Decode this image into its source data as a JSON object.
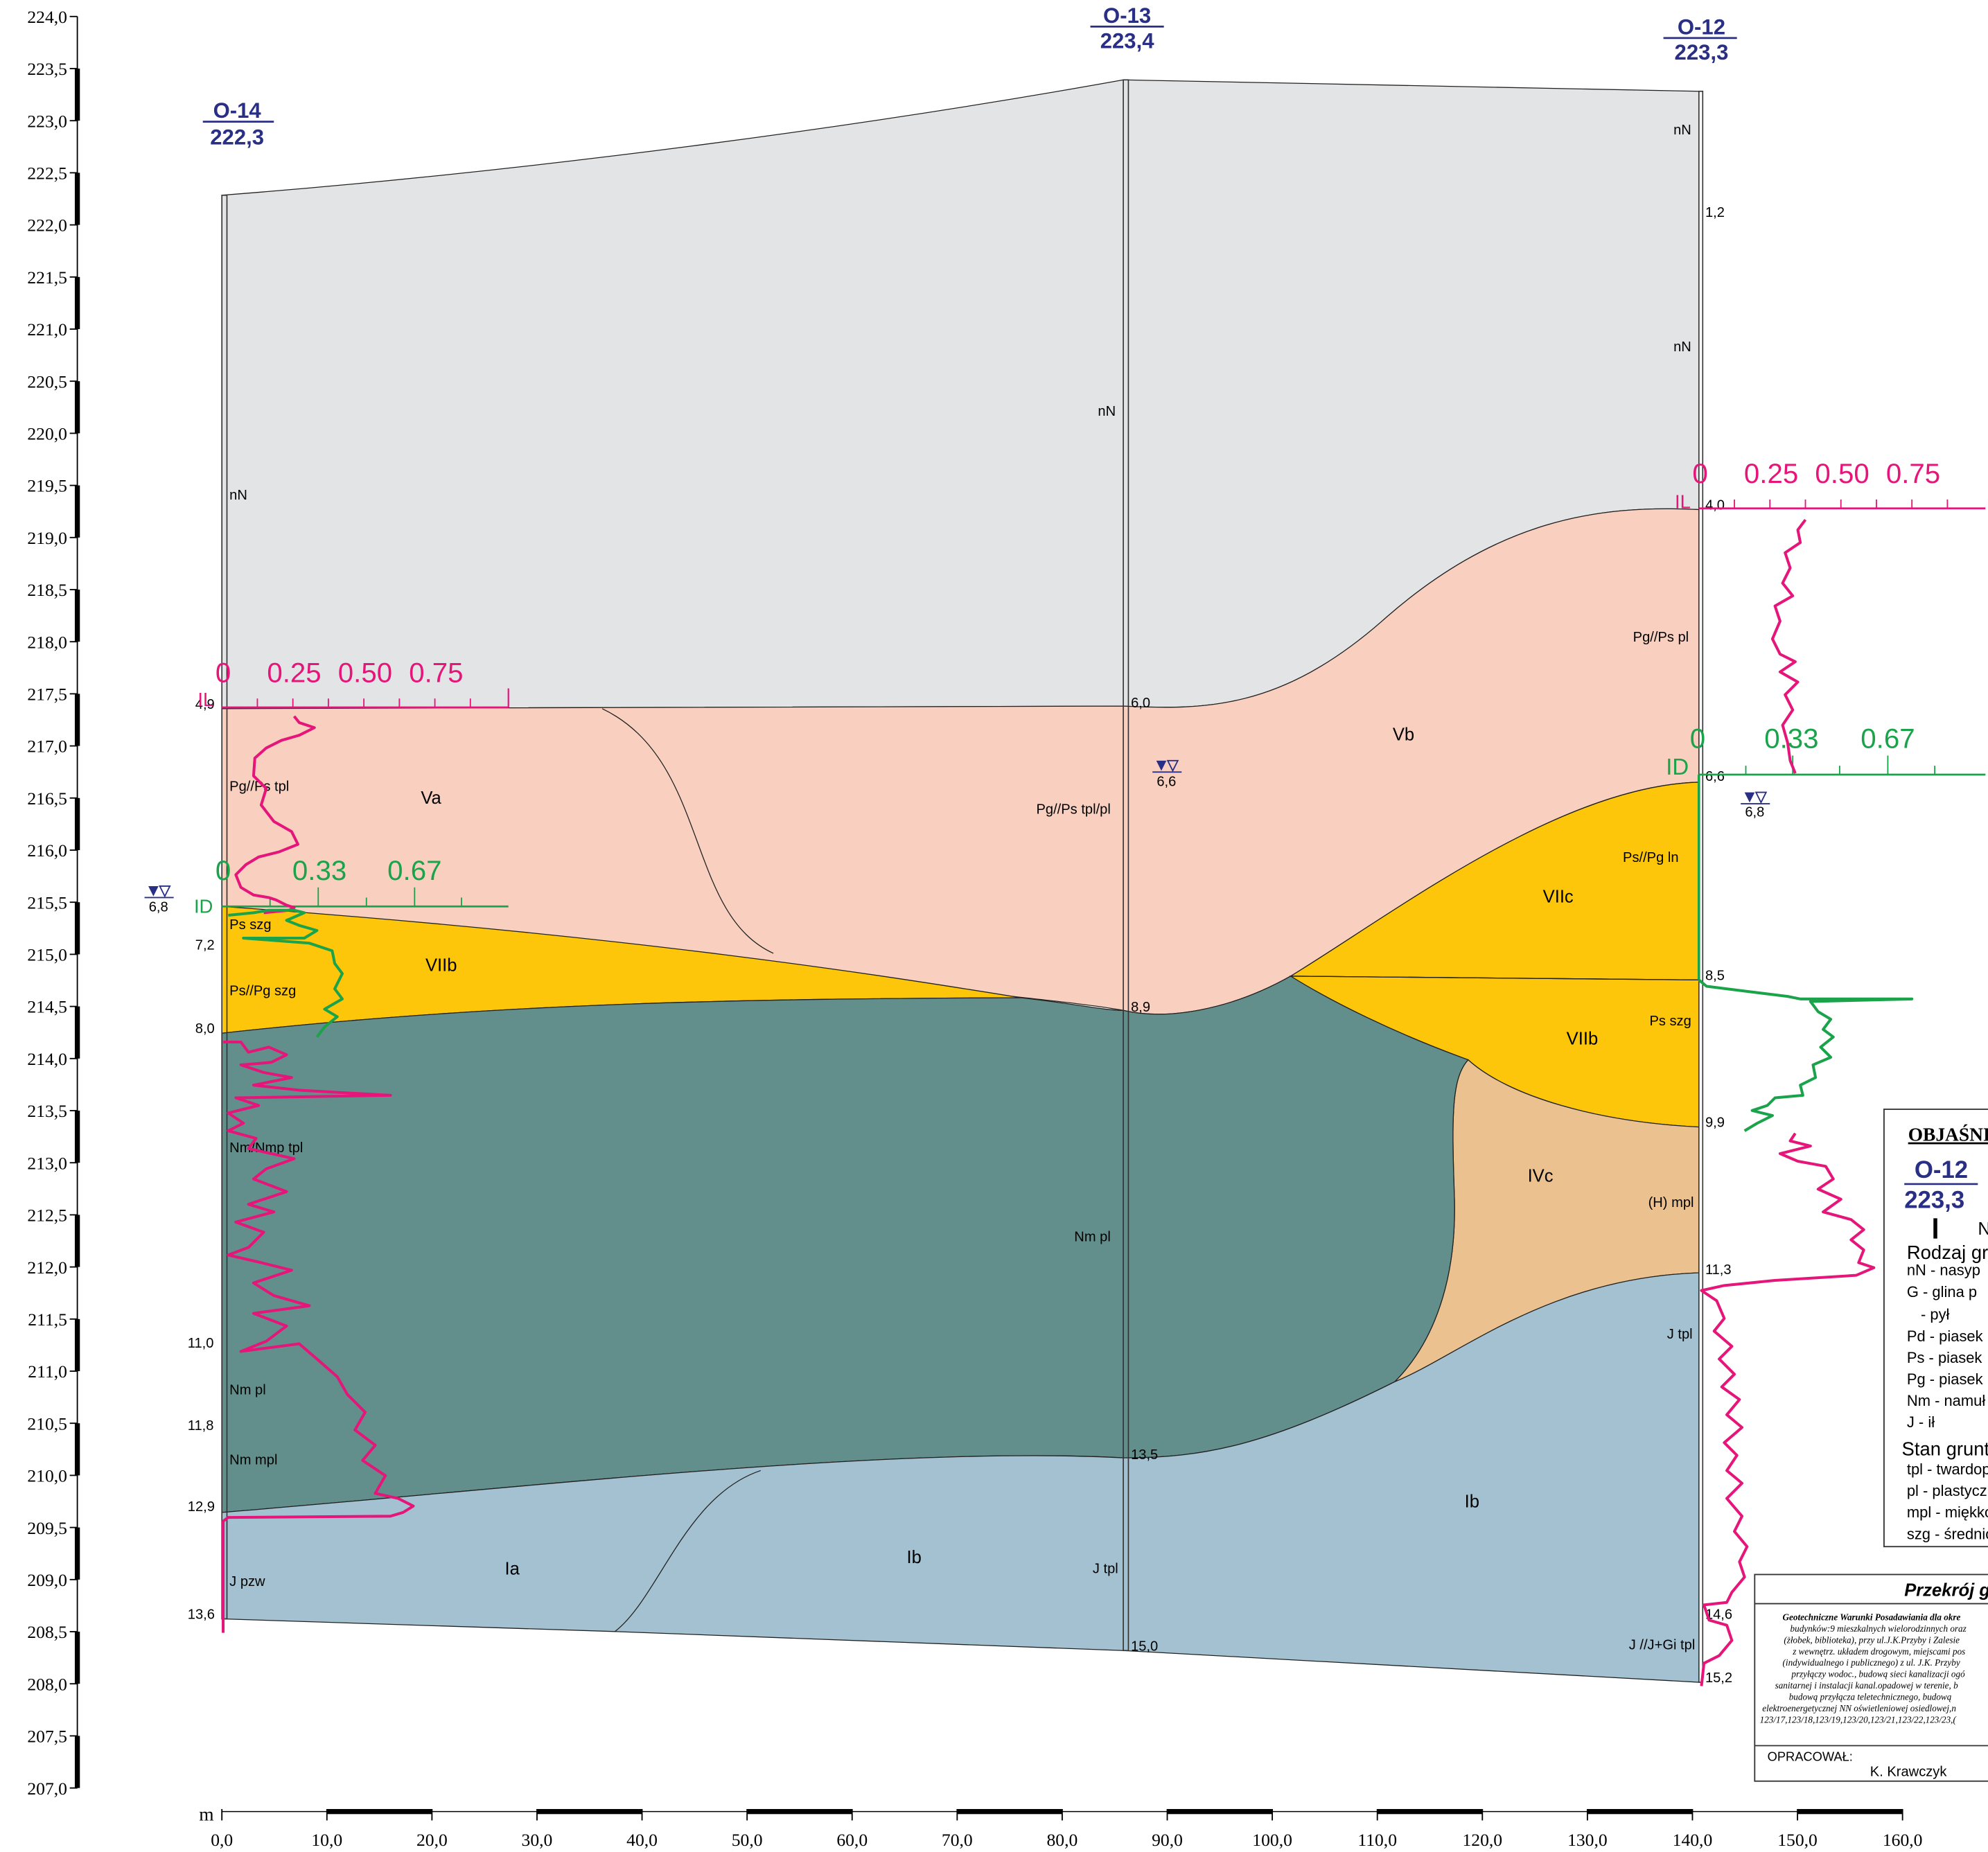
{
  "boreholes": [
    {
      "id": "O-14",
      "elevation": "222,3",
      "bottom_label": "13,6",
      "depth_labels": [
        "4,9",
        "6,8",
        "7,2",
        "8,0",
        "11,0",
        "11,8",
        "12,9",
        "13,6"
      ],
      "soil_labels": [
        "nN",
        "Pg//Ps tpl",
        "Ps szg",
        "Ps//Pg szg",
        "Nm/Nmp tpl",
        "Nm pl",
        "Nm mpl",
        "J pzw"
      ],
      "water_level": "6,8"
    },
    {
      "id": "O-13",
      "elevation": "223,4",
      "depth_labels": [
        "6,0",
        "8,9",
        "13,5",
        "15,0"
      ],
      "soil_labels": [
        "nN",
        "Pg//Ps tpl/pl",
        "Nm pl",
        "J tpl"
      ],
      "water_level": "6,6"
    },
    {
      "id": "O-12",
      "elevation": "223,3",
      "depth_labels": [
        "1,2",
        "4,0",
        "6,6",
        "8,5",
        "9,9",
        "11,3",
        "14,6",
        "15,2"
      ],
      "soil_labels": [
        "nN",
        "nN",
        "Pg//Ps pl",
        "Ps//Pg ln",
        "Ps szg",
        "(H)  mpl",
        "J tpl",
        "J  //J+Gi tpl"
      ],
      "water_level": "6,8"
    }
  ],
  "layer_labels": [
    "Va",
    "Vb",
    "VIIb",
    "VIIc",
    "VIIb",
    "IVc",
    "Ia",
    "Ib",
    "Ib"
  ],
  "elevation_axis": {
    "ticks": [
      "224,0",
      "223,5",
      "223,0",
      "222,5",
      "222,0",
      "221,5",
      "221,0",
      "220,5",
      "220,0",
      "219,5",
      "219,0",
      "218,5",
      "218,0",
      "217,5",
      "217,0",
      "216,5",
      "216,0",
      "215,5",
      "215,0",
      "214,5",
      "214,0",
      "213,5",
      "213,0",
      "212,5",
      "212,0",
      "211,5",
      "211,0",
      "210,5",
      "210,0",
      "209,5",
      "209,0",
      "208,5",
      "208,0",
      "207,5",
      "207,0"
    ]
  },
  "distance_axis": {
    "unit": "m",
    "ticks": [
      "0,0",
      "10,0",
      "20,0",
      "30,0",
      "40,0",
      "50,0",
      "60,0",
      "70,0",
      "80,0",
      "90,0",
      "100,0",
      "110,0",
      "120,0",
      "130,0",
      "140,0",
      "150,0",
      "160,0"
    ]
  },
  "probe_scales": {
    "il_label": "IL",
    "il_ticks": [
      "0",
      "0.25",
      "0.50",
      "0.75"
    ],
    "id_label": "ID",
    "id_ticks": [
      "0",
      "0.33",
      "0.67"
    ]
  },
  "legend": {
    "title": "OBJAŚNI",
    "sample_id": "O-12",
    "sample_elev": "223,3",
    "sample_note": "N",
    "soil_type_title": "Rodzaj gr",
    "soil_types": [
      "nN - nasyp",
      "G   - glina p",
      "  - pył",
      "Pd - piasek",
      "Ps - piasek",
      "Pg - piasek",
      "Nm - namuł",
      "J - ił"
    ],
    "state_title": "Stan grunt",
    "states": [
      "tpl - twardop",
      "pl - plastyczn",
      "mpl - miękko",
      "szg - średnio"
    ]
  },
  "title_block": {
    "title": "Przekrój g",
    "lines": [
      "Geotechniczne Warunki Posadawiania dla okre",
      "budynków:9 mieszkalnych wielorodzinnych oraz",
      "(żłobek, biblioteka), przy ul.J.K.Przyby i Zalesie",
      "z wewnętrz. układem drogowym, miejscami pos",
      "(indywidualnego i publicznego) z ul. J.K. Przyby",
      "przyłączy wodoc., budową sieci kanalizacji ogó",
      "sanitarnej i instalacji kanal.opadowej w terenie, b",
      "budową przyłącza teletechnicznego, budową",
      "elektroenergetycznej NN oświetleniowej osiedlowej,n",
      "123/17,123/18,123/19,123/20,123/21,123/22,123/23,("
    ],
    "prepared_label": "OPRACOWAŁ:",
    "author": "K. Krawczyk"
  },
  "colors": {
    "fill_nN": "#e3e4e6",
    "fill_V": "#f9d0c0",
    "fill_VII": "#fdc60b",
    "fill_N": "#628f8b",
    "fill_IV": "#eac18f",
    "fill_I": "#a3c1d1",
    "il_curve": "#e5157a",
    "id_curve": "#1aa34a",
    "borehole_id": "#2a2f86"
  }
}
